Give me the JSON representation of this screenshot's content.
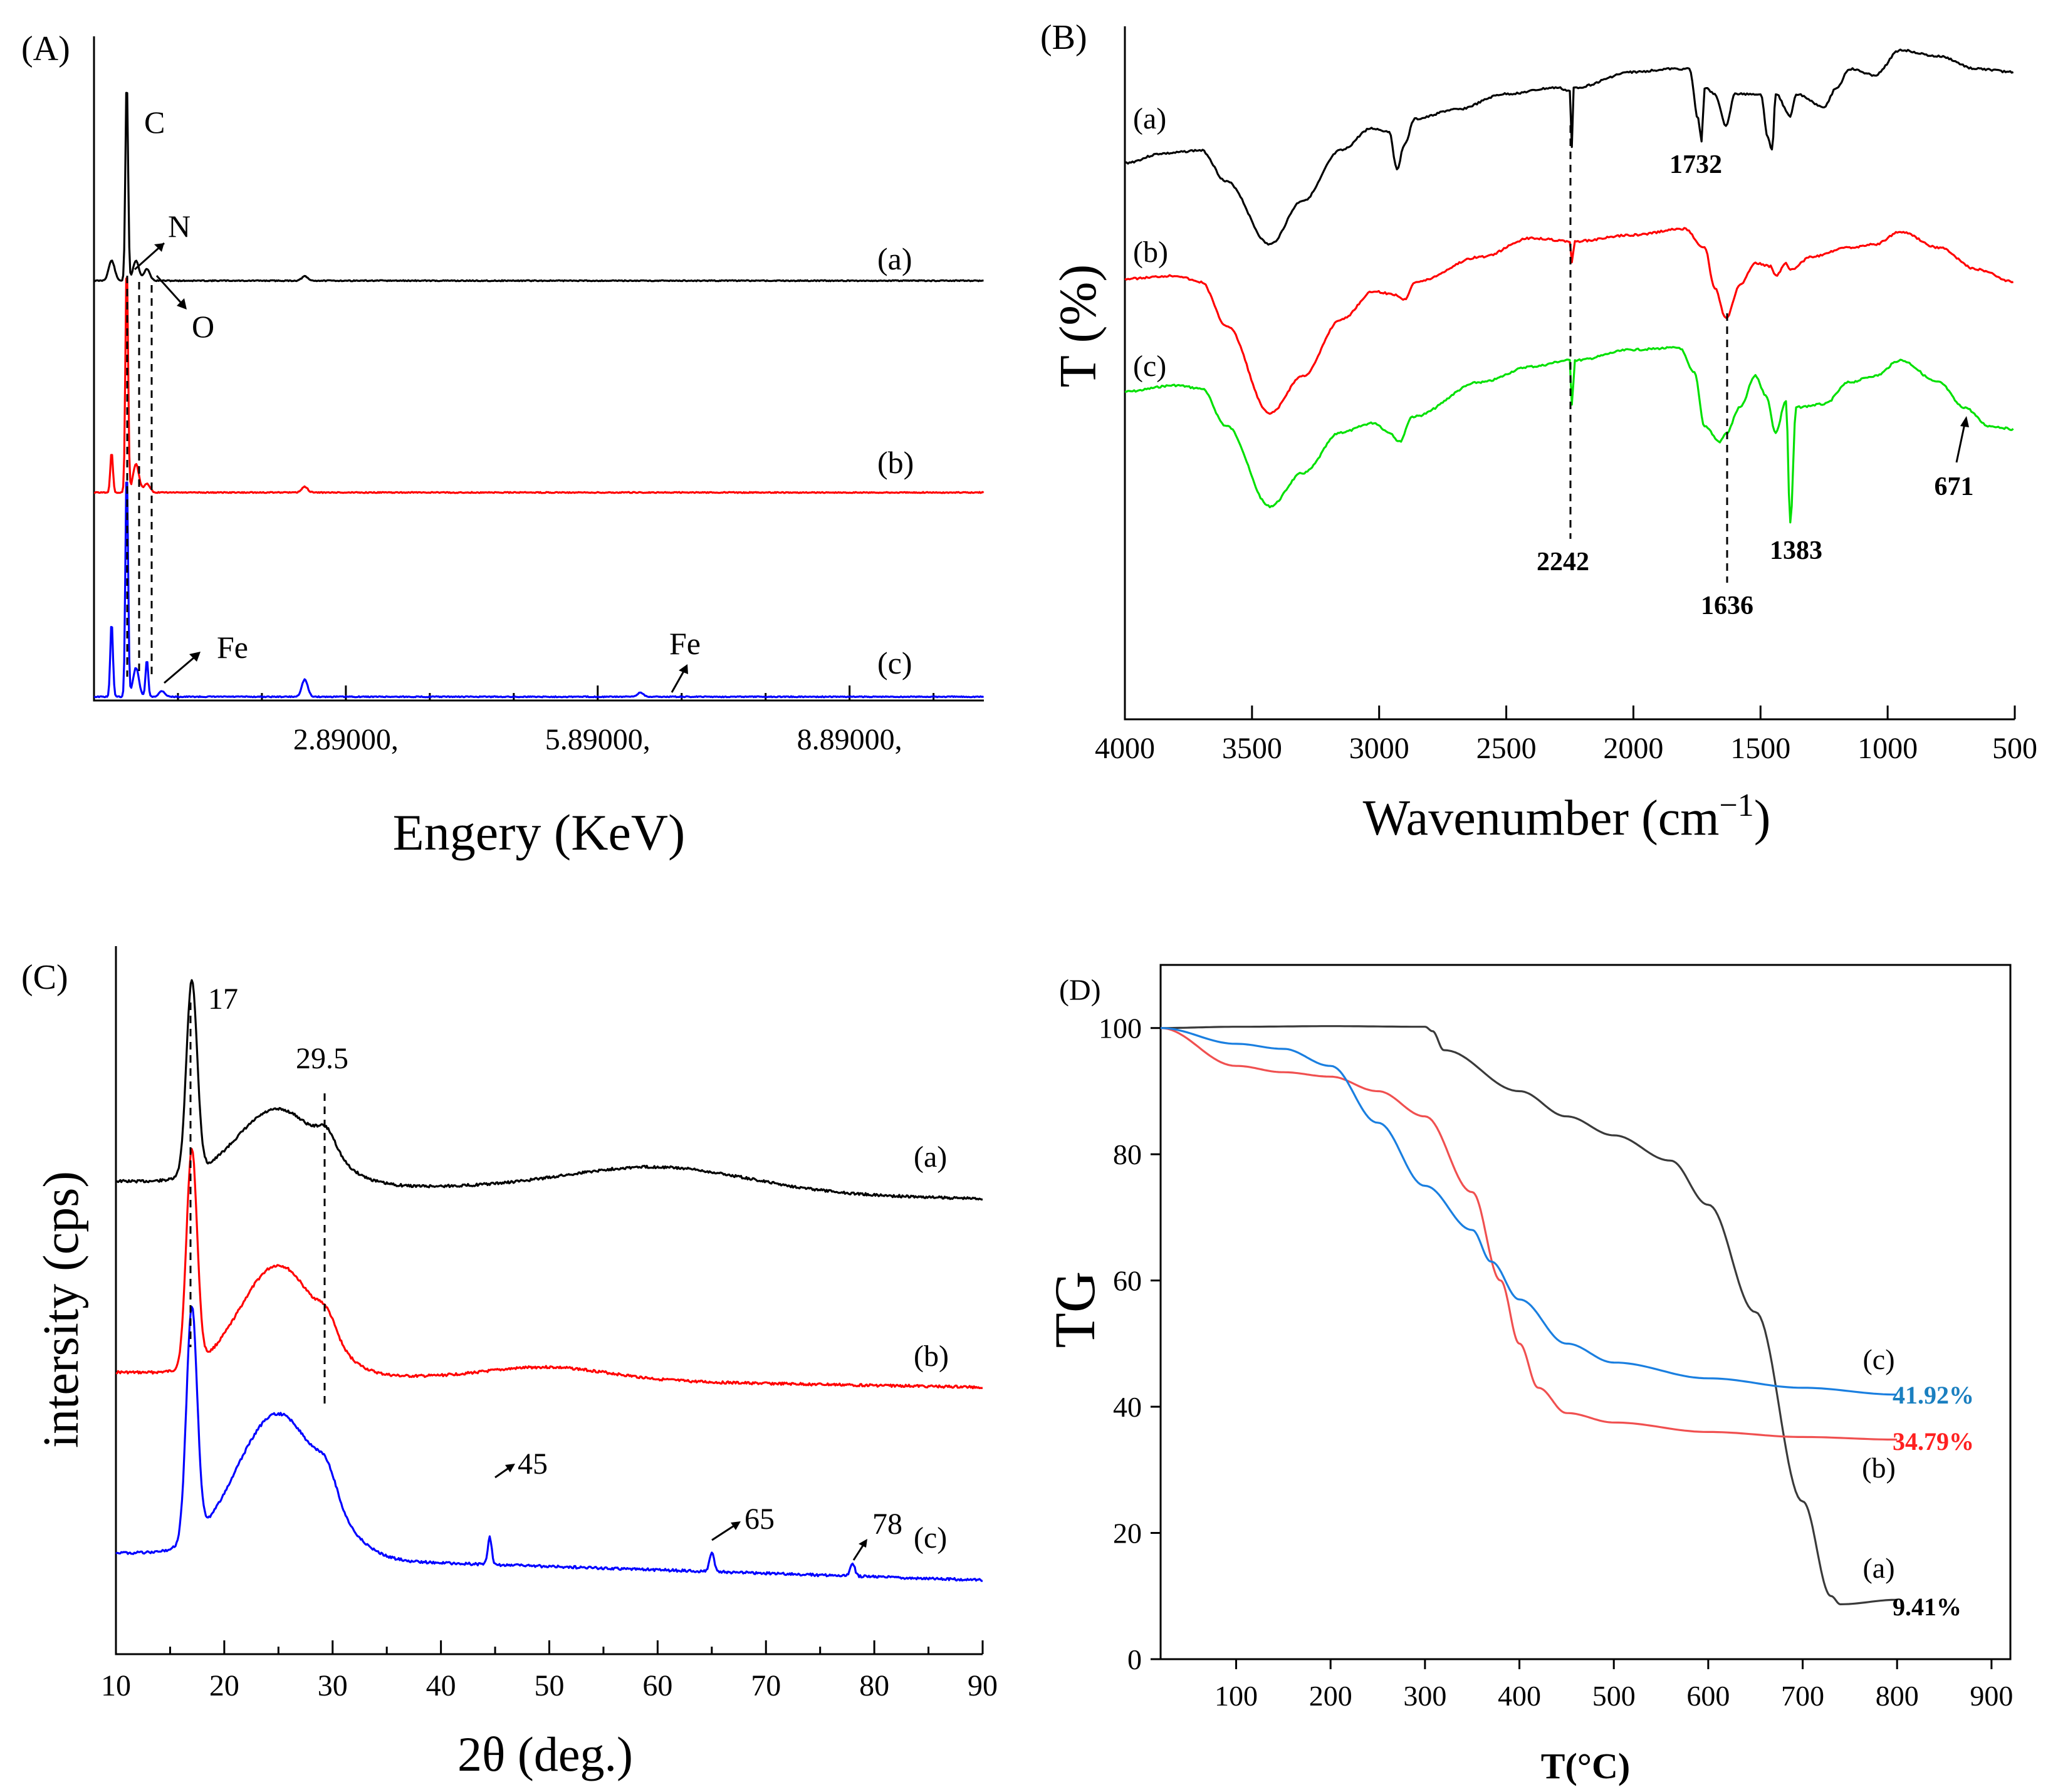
{
  "colors": {
    "a": "#000000",
    "b": "#ff0000",
    "c_green": "#00e000",
    "c_blue": "#0000ff",
    "tg_a": "#3a3a3a",
    "tg_b": "#f05050",
    "tg_c": "#1a7fe0",
    "pct_c": "#1a7fc0",
    "pct_b": "#ff2020"
  },
  "chart_data": [
    {
      "panel": "(A)",
      "type": "line",
      "xlabel": "Engery (KeV)",
      "ylabel": "",
      "xlim": [
        -0.11,
        10.49
      ],
      "x_ticks": [
        "2.89000,",
        "5.89000,",
        "8.89000,"
      ],
      "series": [
        {
          "name": "(a)",
          "peaks": [
            {
              "x": 0.1,
              "h": 0.07
            },
            {
              "x": 0.28,
              "h": 0.7
            },
            {
              "x": 0.39,
              "h": 0.07
            },
            {
              "x": 0.52,
              "h": 0.04
            },
            {
              "x": 2.4,
              "h": 0.015
            }
          ]
        },
        {
          "name": "(b)",
          "peaks": [
            {
              "x": 0.1,
              "h": 0.14
            },
            {
              "x": 0.28,
              "h": 0.8
            },
            {
              "x": 0.39,
              "h": 0.1
            },
            {
              "x": 0.52,
              "h": 0.03
            },
            {
              "x": 2.4,
              "h": 0.02
            }
          ]
        },
        {
          "name": "(c)",
          "peaks": [
            {
              "x": 0.1,
              "h": 0.26
            },
            {
              "x": 0.28,
              "h": 0.8
            },
            {
              "x": 0.39,
              "h": 0.1
            },
            {
              "x": 0.52,
              "h": 0.13
            },
            {
              "x": 0.7,
              "h": 0.02
            },
            {
              "x": 2.4,
              "h": 0.06
            },
            {
              "x": 6.4,
              "h": 0.015
            }
          ]
        }
      ],
      "annotations": [
        "C",
        "N",
        "O",
        "Fe",
        "Fe"
      ]
    },
    {
      "panel": "(B)",
      "type": "line",
      "xlabel": "Wavenumber (cm",
      "xlabel_sup": "−1",
      "xlabel_end": ")",
      "ylabel": "T (%)",
      "xlim": [
        4000,
        500
      ],
      "x_ticks": [
        "4000",
        "3500",
        "3000",
        "2500",
        "2000",
        "1500",
        "1000",
        "500"
      ],
      "series_labels": [
        "(a)",
        "(b)",
        "(c)"
      ],
      "peak_labels": [
        "1732",
        "2242",
        "1636",
        "1383",
        "671"
      ]
    },
    {
      "panel": "(C)",
      "type": "line",
      "xlabel": "2θ (deg.)",
      "ylabel": "intersity (cps)",
      "xlim": [
        10,
        90
      ],
      "x_ticks": [
        "10",
        "20",
        "30",
        "40",
        "50",
        "60",
        "70",
        "80",
        "90"
      ],
      "series_labels": [
        "(a)",
        "(b)",
        "(c)"
      ],
      "peak_labels": [
        "17",
        "29.5",
        "45",
        "65",
        "78"
      ]
    },
    {
      "panel": "(D)",
      "type": "line",
      "xlabel": "T(°C)",
      "ylabel": "TG",
      "xlim": [
        20,
        920
      ],
      "ylim": [
        0,
        110
      ],
      "x_ticks": [
        "100",
        "200",
        "300",
        "400",
        "500",
        "600",
        "700",
        "800",
        "900"
      ],
      "y_ticks": [
        "0",
        "20",
        "40",
        "60",
        "80",
        "100"
      ],
      "series": [
        {
          "name": "(a)",
          "x": [
            20,
            100,
            200,
            300,
            308,
            320,
            400,
            450,
            500,
            560,
            600,
            650,
            700,
            730,
            740,
            800
          ],
          "y": [
            100,
            100.2,
            100.3,
            100.2,
            99.5,
            96.5,
            90,
            86,
            83,
            79,
            72,
            55,
            25,
            10,
            8.7,
            9.41
          ]
        },
        {
          "name": "(b)",
          "x": [
            20,
            100,
            150,
            200,
            250,
            300,
            350,
            380,
            400,
            420,
            450,
            500,
            600,
            700,
            800
          ],
          "y": [
            100,
            94,
            93,
            92.3,
            90,
            86,
            74,
            60,
            50,
            43,
            39,
            37.5,
            36,
            35.2,
            34.79
          ]
        },
        {
          "name": "(c)",
          "x": [
            20,
            100,
            150,
            200,
            250,
            300,
            350,
            370,
            400,
            450,
            500,
            600,
            700,
            800
          ],
          "y": [
            100,
            97.5,
            96.7,
            94,
            85,
            75,
            68,
            63,
            57,
            50,
            47,
            44.5,
            43,
            41.92
          ]
        }
      ],
      "end_labels": [
        "(c)",
        "(b)",
        "(a)"
      ],
      "percent_labels": [
        "41.92%",
        "34.79%",
        "9.41%"
      ]
    }
  ]
}
